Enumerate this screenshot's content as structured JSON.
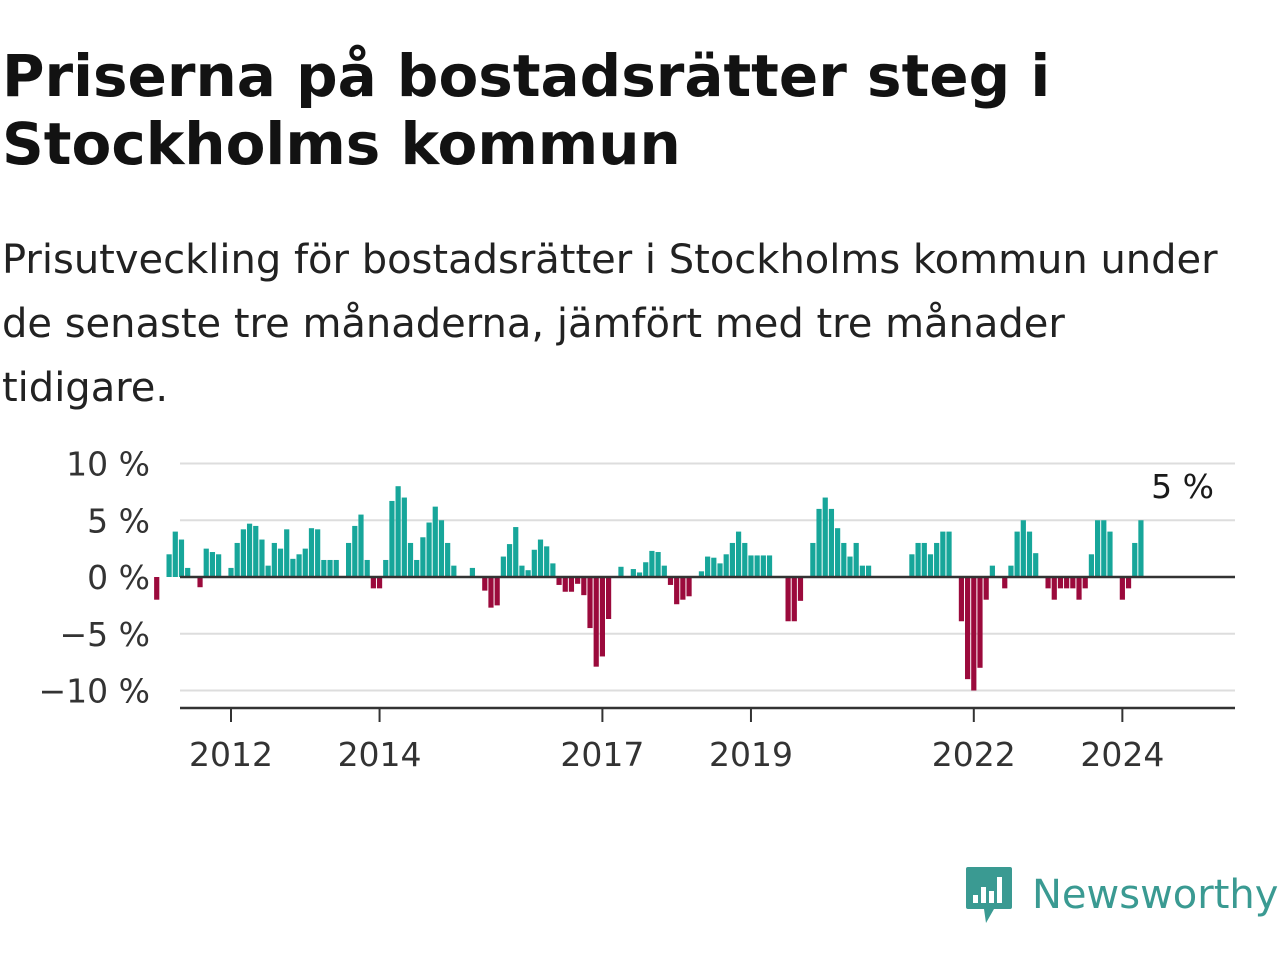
{
  "header": {
    "title": "Priserna på bostadsrätter steg i Stockholms kommun",
    "subtitle": "Prisutveckling för bostadsrätter i Stockholms kommun under de senaste tre månaderna, jämfört med tre månader tidigare."
  },
  "brand": {
    "name": "Newsworthy",
    "icon": "newsworthy-logo-icon",
    "color": "#3a9a92"
  },
  "chart_data": {
    "type": "bar",
    "start": "2011-01",
    "frequency": "monthly",
    "ylim": [
      -11,
      11
    ],
    "yticks": [
      10,
      5,
      0,
      -5,
      -10
    ],
    "ytick_labels": [
      "10 %",
      "5 %",
      "0 %",
      "−5 %",
      "−10 %"
    ],
    "xtick_labels": [
      "2012",
      "2014",
      "2017",
      "2019",
      "2022",
      "2024"
    ],
    "annotation": "5 %",
    "colors": {
      "positive": "#17a69a",
      "negative": "#9b0a3c",
      "grid": "#dddddd",
      "axis": "#333333"
    },
    "values": [
      -2,
      null,
      2,
      4,
      3.3,
      0.8,
      null,
      -0.9,
      2.5,
      2.2,
      2,
      null,
      0.8,
      3,
      4.2,
      4.7,
      4.5,
      3.3,
      1,
      3,
      2.5,
      4.2,
      1.6,
      2,
      2.5,
      4.3,
      4.2,
      1.5,
      1.5,
      1.5,
      null,
      3,
      4.5,
      5.5,
      1.5,
      -1,
      -1,
      1.5,
      6.7,
      8,
      7,
      3,
      1.5,
      3.5,
      4.8,
      6.2,
      5,
      3,
      1,
      null,
      null,
      0.8,
      null,
      -1.2,
      -2.7,
      -2.5,
      1.8,
      2.9,
      4.4,
      1,
      0.6,
      2.4,
      3.3,
      2.7,
      1.2,
      -0.7,
      -1.3,
      -1.3,
      -0.6,
      -1.6,
      -4.5,
      -7.9,
      -7,
      -3.7,
      null,
      0.9,
      null,
      0.7,
      0.4,
      1.3,
      2.3,
      2.2,
      1,
      -0.7,
      -2.4,
      -2,
      -1.7,
      null,
      0.5,
      1.8,
      1.7,
      1.2,
      2,
      3,
      4,
      3,
      1.9,
      1.9,
      1.9,
      1.9,
      null,
      null,
      -3.9,
      -3.9,
      -2.1,
      null,
      3,
      6,
      7,
      6,
      4.3,
      3,
      1.8,
      3,
      1,
      1,
      null,
      null,
      null,
      null,
      null,
      null,
      2,
      3,
      3,
      2,
      3,
      4,
      4,
      null,
      -3.9,
      -9,
      -10,
      -8,
      -2,
      1,
      null,
      -1,
      1,
      4,
      5,
      4,
      2.1,
      null,
      -1,
      -2,
      -1,
      -1,
      -1,
      -2,
      -1,
      2,
      5,
      5,
      4,
      null,
      -2,
      -1,
      3,
      5
    ]
  }
}
